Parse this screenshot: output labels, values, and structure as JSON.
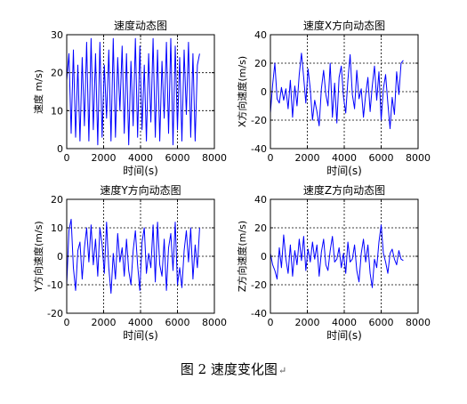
{
  "figure_caption": "图 2  速度变化图",
  "caption_mark": "↵",
  "colors": {
    "line": "#0000ff",
    "axis": "#000000",
    "grid": "#000000",
    "background": "#ffffff"
  },
  "chart_data": [
    {
      "type": "line",
      "title": "速度动态图",
      "xlabel": "时间(s)",
      "ylabel": "速度 m/s)",
      "xlim": [
        0,
        8000
      ],
      "ylim": [
        0,
        30
      ],
      "xticks": [
        0,
        2000,
        4000,
        6000,
        8000
      ],
      "yticks": [
        0,
        10,
        20,
        30
      ],
      "grid": true,
      "series": [
        {
          "x": [
            0,
            120,
            240,
            360,
            480,
            600,
            720,
            840,
            960,
            1080,
            1200,
            1320,
            1440,
            1560,
            1680,
            1800,
            1920,
            2040,
            2160,
            2280,
            2400,
            2520,
            2640,
            2760,
            2880,
            3000,
            3120,
            3240,
            3360,
            3480,
            3600,
            3720,
            3840,
            3960,
            4080,
            4200,
            4320,
            4440,
            4560,
            4680,
            4800,
            4920,
            5040,
            5160,
            5280,
            5400,
            5520,
            5640,
            5760,
            5880,
            6000,
            6120,
            6240,
            6360,
            6480,
            6600,
            6720,
            6840,
            6960,
            7080,
            7200
          ],
          "y": [
            18,
            25,
            4,
            26,
            3,
            22,
            2,
            24,
            6,
            28,
            2,
            29,
            5,
            25,
            1,
            28,
            3,
            22,
            8,
            26,
            2,
            29,
            3,
            24,
            10,
            27,
            4,
            25,
            1,
            23,
            6,
            29,
            3,
            27,
            5,
            22,
            2,
            25,
            7,
            29,
            3,
            26,
            2,
            23,
            8,
            28,
            4,
            29,
            1,
            27,
            5,
            24,
            2,
            26,
            9,
            28,
            3,
            25,
            2,
            22,
            25
          ]
        }
      ]
    },
    {
      "type": "line",
      "title": "速度X方向动态图",
      "xlabel": "时间(s)",
      "ylabel": "X方向速度(m/s)",
      "xlim": [
        0,
        8000
      ],
      "ylim": [
        -40,
        40
      ],
      "xticks": [
        0,
        2000,
        4000,
        6000,
        8000
      ],
      "yticks": [
        -40,
        -20,
        0,
        20,
        40
      ],
      "grid": true,
      "series": [
        {
          "x": [
            0,
            120,
            240,
            360,
            480,
            600,
            720,
            840,
            960,
            1080,
            1200,
            1320,
            1440,
            1560,
            1680,
            1800,
            1920,
            2040,
            2160,
            2280,
            2400,
            2520,
            2640,
            2760,
            2880,
            3000,
            3120,
            3240,
            3360,
            3480,
            3600,
            3720,
            3840,
            3960,
            4080,
            4200,
            4320,
            4440,
            4560,
            4680,
            4800,
            4920,
            5040,
            5160,
            5280,
            5400,
            5520,
            5640,
            5760,
            5880,
            6000,
            6120,
            6240,
            6360,
            6480,
            6600,
            6720,
            6840,
            6960,
            7080,
            7200
          ],
          "y": [
            -15,
            5,
            20,
            -5,
            -8,
            3,
            -6,
            2,
            -12,
            8,
            -18,
            4,
            -10,
            12,
            27,
            10,
            -8,
            16,
            2,
            -20,
            -6,
            -14,
            -24,
            2,
            15,
            -2,
            -10,
            20,
            -18,
            6,
            -22,
            10,
            18,
            -4,
            -15,
            8,
            26,
            -2,
            -12,
            15,
            -5,
            2,
            -18,
            -2,
            10,
            -14,
            4,
            18,
            -6,
            14,
            -20,
            2,
            12,
            -8,
            -26,
            -4,
            -16,
            14,
            -2,
            20,
            22
          ]
        }
      ]
    },
    {
      "type": "line",
      "title": "速度Y方向动态图",
      "xlabel": "时间(s)",
      "ylabel": "Y方向速度(m/s)",
      "xlim": [
        0,
        8000
      ],
      "ylim": [
        -20,
        20
      ],
      "xticks": [
        0,
        2000,
        4000,
        6000,
        8000
      ],
      "yticks": [
        -20,
        -10,
        0,
        10,
        20
      ],
      "grid": true,
      "series": [
        {
          "x": [
            0,
            120,
            240,
            360,
            480,
            600,
            720,
            840,
            960,
            1080,
            1200,
            1320,
            1440,
            1560,
            1680,
            1800,
            1920,
            2040,
            2160,
            2280,
            2400,
            2520,
            2640,
            2760,
            2880,
            3000,
            3120,
            3240,
            3360,
            3480,
            3600,
            3720,
            3840,
            3960,
            4080,
            4200,
            4320,
            4440,
            4560,
            4680,
            4800,
            4920,
            5040,
            5160,
            5280,
            5400,
            5520,
            5640,
            5760,
            5880,
            6000,
            6120,
            6240,
            6360,
            6480,
            6600,
            6720,
            6840,
            6960,
            7080,
            7200
          ],
          "y": [
            -10,
            9,
            13,
            -4,
            -12,
            2,
            5,
            -8,
            3,
            10,
            -2,
            11,
            -3,
            6,
            -7,
            10,
            4,
            -6,
            12,
            -4,
            -13,
            1,
            -8,
            8,
            -2,
            3,
            -7,
            6,
            -5,
            -10,
            2,
            9,
            -3,
            -12,
            5,
            10,
            -6,
            1,
            -4,
            11,
            -9,
            12,
            -3,
            -7,
            6,
            -12,
            3,
            8,
            -5,
            12,
            -10,
            -4,
            -11,
            2,
            9,
            -2,
            10,
            -8,
            4,
            -4,
            10
          ]
        }
      ]
    },
    {
      "type": "line",
      "title": "速度Z方向动态图",
      "xlabel": "时间(s)",
      "ylabel": "Z方向速度(m/s)",
      "xlim": [
        0,
        8000
      ],
      "ylim": [
        -40,
        40
      ],
      "xticks": [
        0,
        2000,
        4000,
        6000,
        8000
      ],
      "yticks": [
        -40,
        -20,
        0,
        20,
        40
      ],
      "grid": true,
      "series": [
        {
          "x": [
            0,
            120,
            240,
            360,
            480,
            600,
            720,
            840,
            960,
            1080,
            1200,
            1320,
            1440,
            1560,
            1680,
            1800,
            1920,
            2040,
            2160,
            2280,
            2400,
            2520,
            2640,
            2760,
            2880,
            3000,
            3120,
            3240,
            3360,
            3480,
            3600,
            3720,
            3840,
            3960,
            4080,
            4200,
            4320,
            4440,
            4560,
            4680,
            4800,
            4920,
            5040,
            5160,
            5280,
            5400,
            5520,
            5640,
            5760,
            5880,
            6000,
            6120,
            6240,
            6360,
            6480,
            6600,
            6720,
            6840,
            6960,
            7080,
            7200
          ],
          "y": [
            2,
            -6,
            -10,
            -16,
            6,
            -8,
            15,
            -2,
            -12,
            8,
            -14,
            4,
            -6,
            12,
            -3,
            14,
            -10,
            5,
            -4,
            10,
            -2,
            8,
            -14,
            3,
            12,
            -6,
            -10,
            4,
            14,
            -4,
            -2,
            6,
            -8,
            2,
            -12,
            10,
            -4,
            -2,
            8,
            -10,
            -18,
            2,
            12,
            -4,
            8,
            -12,
            -22,
            -2,
            -8,
            10,
            22,
            2,
            -4,
            -12,
            2,
            5,
            -2,
            -6,
            4,
            -2,
            -3
          ]
        }
      ]
    }
  ]
}
